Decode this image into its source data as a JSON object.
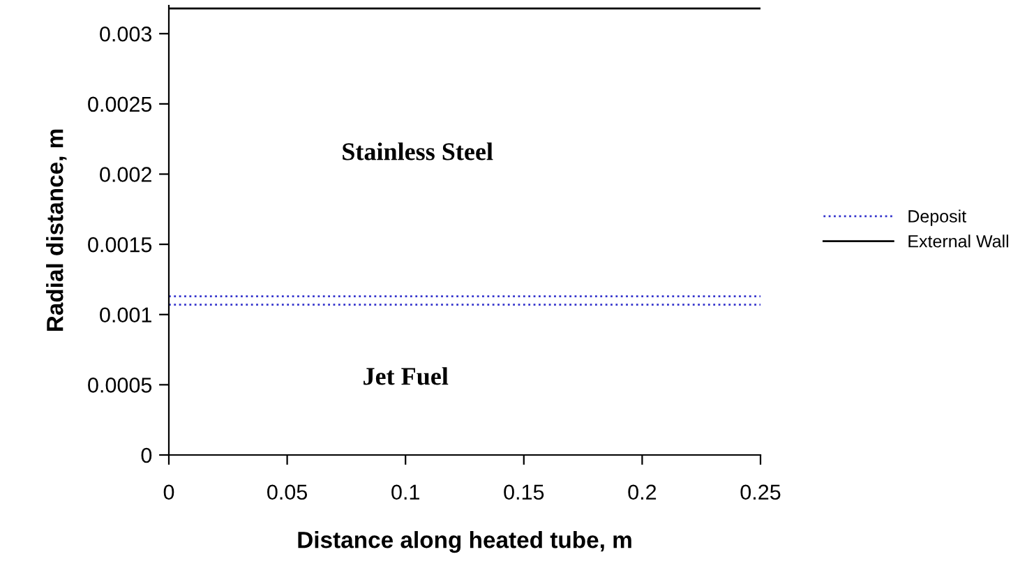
{
  "chart_data": {
    "type": "line",
    "xlabel": "Distance along heated tube, m",
    "ylabel": "Radial distance, m",
    "x": [
      0,
      0.25
    ],
    "series": [
      {
        "name": "Deposit",
        "color": "#3333cc",
        "values": [
          0.00113,
          0.00113
        ],
        "line_style": "dotted"
      },
      {
        "color": "#3333cc",
        "values": [
          0.00107,
          0.00107
        ],
        "line_style": "dotted"
      },
      {
        "name": "External Wall",
        "color": "#000000",
        "values": [
          0.00318,
          0.00318
        ],
        "line_style": "solid"
      }
    ],
    "xlim": [
      0,
      0.25
    ],
    "xticks": [
      0,
      0.05,
      0.1,
      0.15,
      0.2,
      0.25
    ],
    "ylim": [
      0,
      0.0032
    ],
    "yticks": [
      0,
      0.0005,
      0.001,
      0.0015,
      0.002,
      0.0025,
      0.003
    ],
    "annotations": [
      "Stainless Steel",
      "Jet Fuel"
    ],
    "grid": false,
    "legend": "right",
    "marker": "none"
  }
}
